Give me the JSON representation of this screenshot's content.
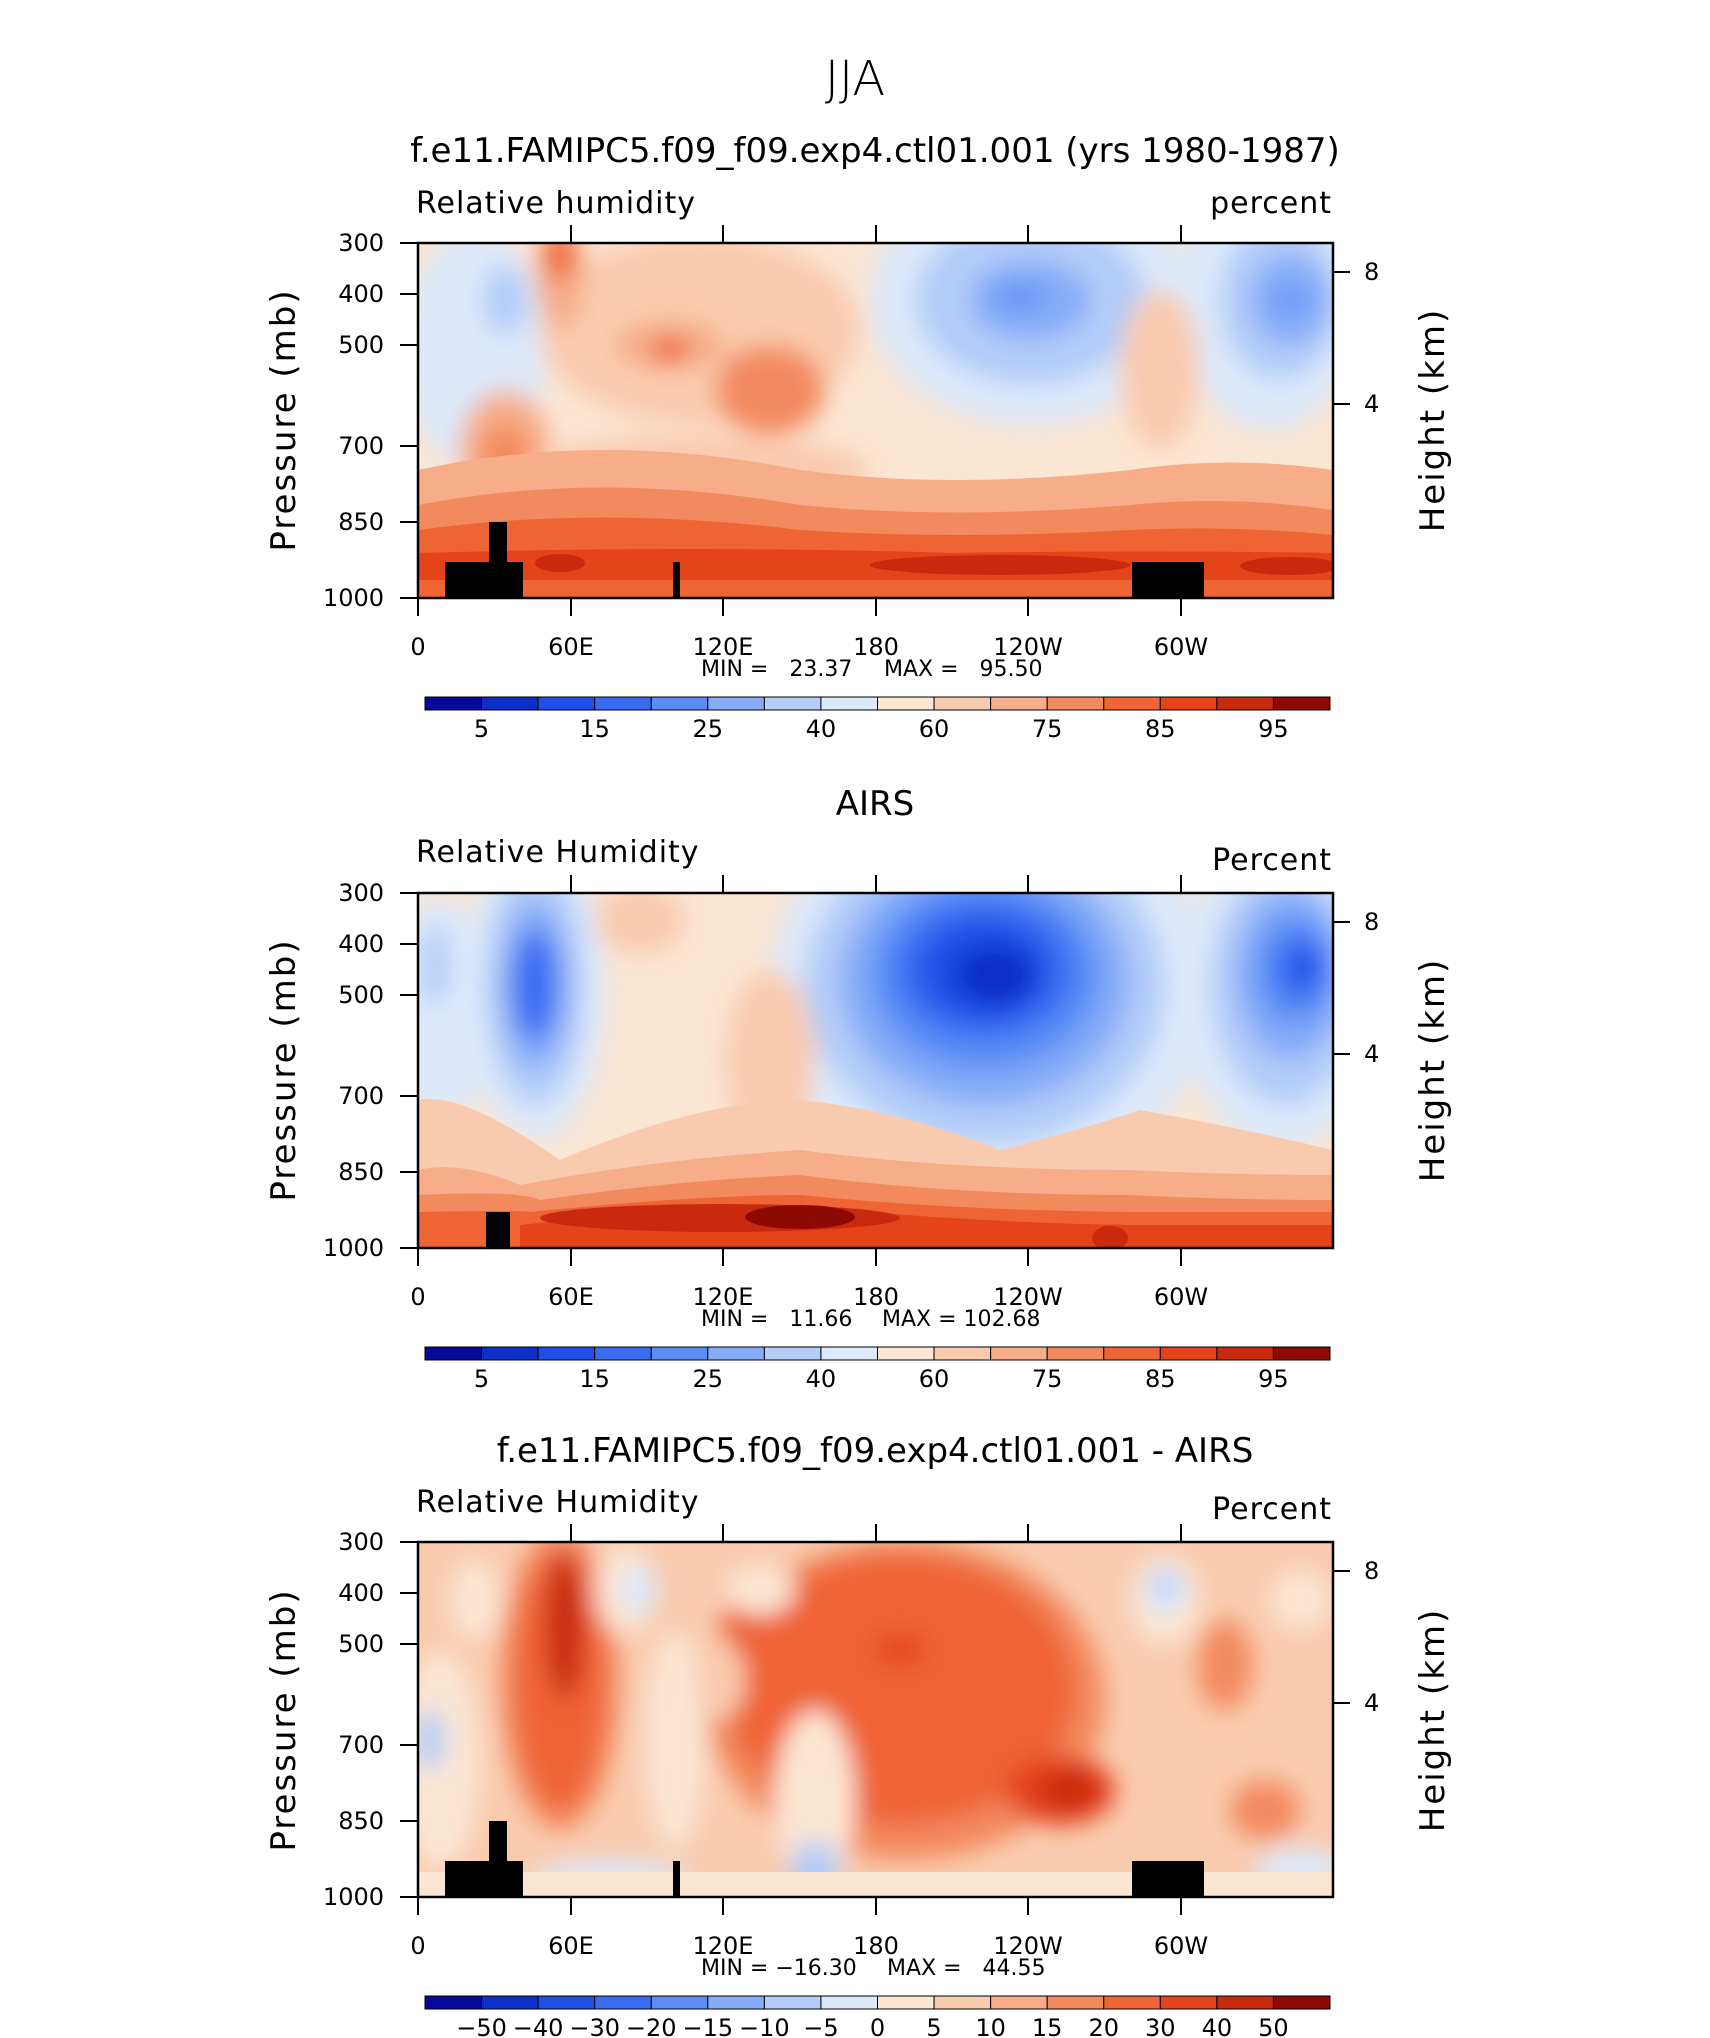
{
  "chart_data": {
    "type": "heatmap",
    "title": "JJA",
    "panels": [
      {
        "title": "f.e11.FAMIPC5.f09_f09.exp4.ctl01.001 (yrs 1980-1987)",
        "left_label": "Relative humidity",
        "right_label": "percent",
        "ylabel": "Pressure (mb)",
        "ylabel_right": "Height (km)",
        "y_ticks": [
          "300",
          "400",
          "500",
          "700",
          "850",
          "1000"
        ],
        "y_right_ticks": [
          "8",
          "4"
        ],
        "x_ticks": [
          "0",
          "60E",
          "120E",
          "180",
          "120W",
          "60W"
        ],
        "min_text": "MIN =   23.37",
        "max_text": "MAX =   95.50",
        "min": 23.37,
        "max": 95.5,
        "colorbar_labels": [
          "5",
          "15",
          "25",
          "40",
          "60",
          "75",
          "85",
          "95"
        ]
      },
      {
        "title": "AIRS",
        "left_label": "Relative Humidity",
        "right_label": "Percent",
        "ylabel": "Pressure (mb)",
        "ylabel_right": "Height (km)",
        "y_ticks": [
          "300",
          "400",
          "500",
          "700",
          "850",
          "1000"
        ],
        "y_right_ticks": [
          "8",
          "4"
        ],
        "x_ticks": [
          "0",
          "60E",
          "120E",
          "180",
          "120W",
          "60W"
        ],
        "min_text": "MIN =   11.66",
        "max_text": "MAX = 102.68",
        "min": 11.66,
        "max": 102.68,
        "colorbar_labels": [
          "5",
          "15",
          "25",
          "40",
          "60",
          "75",
          "85",
          "95"
        ]
      },
      {
        "title": "f.e11.FAMIPC5.f09_f09.exp4.ctl01.001 - AIRS",
        "left_label": "Relative Humidity",
        "right_label": "Percent",
        "ylabel": "Pressure (mb)",
        "ylabel_right": "Height (km)",
        "y_ticks": [
          "300",
          "400",
          "500",
          "700",
          "850",
          "1000"
        ],
        "y_right_ticks": [
          "8",
          "4"
        ],
        "x_ticks": [
          "0",
          "60E",
          "120E",
          "180",
          "120W",
          "60W"
        ],
        "min_text": "MIN = −16.30",
        "max_text": "MAX =   44.55",
        "min": -16.3,
        "max": 44.55,
        "colorbar_labels": [
          "−50",
          "−40",
          "−30",
          "−20",
          "−15",
          "−10",
          "−5",
          "0",
          "5",
          "10",
          "15",
          "20",
          "30",
          "40",
          "50"
        ]
      }
    ],
    "colorbar_colors": [
      "#08089a",
      "#0d2ec8",
      "#1f4fe6",
      "#3a6cf2",
      "#5a8ef6",
      "#86acf8",
      "#b3ccf8",
      "#dce9fa",
      "#fbe6d4",
      "#f9cbae",
      "#f6ad88",
      "#f38a5e",
      "#ef6435",
      "#e5431a",
      "#c92a0e",
      "#8d0a02"
    ]
  }
}
